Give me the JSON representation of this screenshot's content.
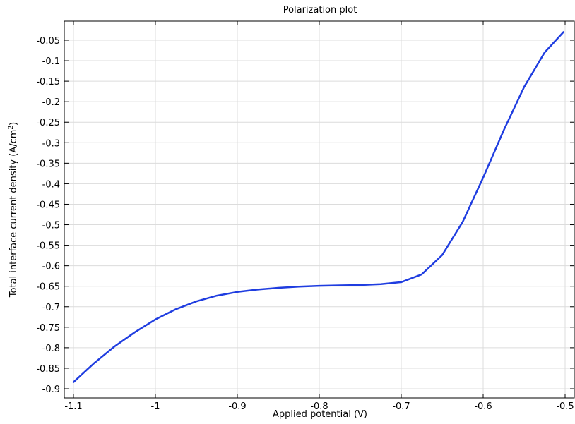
{
  "chart_data": {
    "type": "line",
    "title": "Polarization plot",
    "xlabel": "Applied potential (V)",
    "ylabel_main": "Total interface current density (A/cm",
    "ylabel_sup": "2",
    "ylabel_end": ")",
    "xlim": [
      -1.1,
      -0.5
    ],
    "ylim": [
      -0.9,
      -0.05
    ],
    "x_ticks": [
      {
        "value": -1.1,
        "label": "-1.1"
      },
      {
        "value": -1.0,
        "label": "-1"
      },
      {
        "value": -0.9,
        "label": "-0.9"
      },
      {
        "value": -0.8,
        "label": "-0.8"
      },
      {
        "value": -0.7,
        "label": "-0.7"
      },
      {
        "value": -0.6,
        "label": "-0.6"
      },
      {
        "value": -0.5,
        "label": "-0.5"
      }
    ],
    "y_ticks": [
      {
        "value": -0.05,
        "label": "-0.05"
      },
      {
        "value": -0.1,
        "label": "-0.1"
      },
      {
        "value": -0.15,
        "label": "-0.15"
      },
      {
        "value": -0.2,
        "label": "-0.2"
      },
      {
        "value": -0.25,
        "label": "-0.25"
      },
      {
        "value": -0.3,
        "label": "-0.3"
      },
      {
        "value": -0.35,
        "label": "-0.35"
      },
      {
        "value": -0.4,
        "label": "-0.4"
      },
      {
        "value": -0.45,
        "label": "-0.45"
      },
      {
        "value": -0.5,
        "label": "-0.5"
      },
      {
        "value": -0.55,
        "label": "-0.55"
      },
      {
        "value": -0.6,
        "label": "-0.6"
      },
      {
        "value": -0.65,
        "label": "-0.65"
      },
      {
        "value": -0.7,
        "label": "-0.7"
      },
      {
        "value": -0.75,
        "label": "-0.75"
      },
      {
        "value": -0.8,
        "label": "-0.8"
      },
      {
        "value": -0.85,
        "label": "-0.85"
      },
      {
        "value": -0.9,
        "label": "-0.9"
      }
    ],
    "grid": true,
    "series": [
      {
        "color": "#1f3de0",
        "x": [
          -1.1,
          -1.075,
          -1.05,
          -1.025,
          -1.0,
          -0.975,
          -0.95,
          -0.925,
          -0.9,
          -0.875,
          -0.85,
          -0.825,
          -0.8,
          -0.775,
          -0.75,
          -0.725,
          -0.7,
          -0.675,
          -0.65,
          -0.625,
          -0.6,
          -0.575,
          -0.55,
          -0.525,
          -0.502
        ],
        "y": [
          -0.884,
          -0.838,
          -0.797,
          -0.762,
          -0.731,
          -0.706,
          -0.687,
          -0.673,
          -0.664,
          -0.658,
          -0.654,
          -0.651,
          -0.649,
          -0.648,
          -0.647,
          -0.645,
          -0.64,
          -0.621,
          -0.574,
          -0.493,
          -0.385,
          -0.27,
          -0.164,
          -0.08,
          -0.03
        ]
      }
    ]
  }
}
